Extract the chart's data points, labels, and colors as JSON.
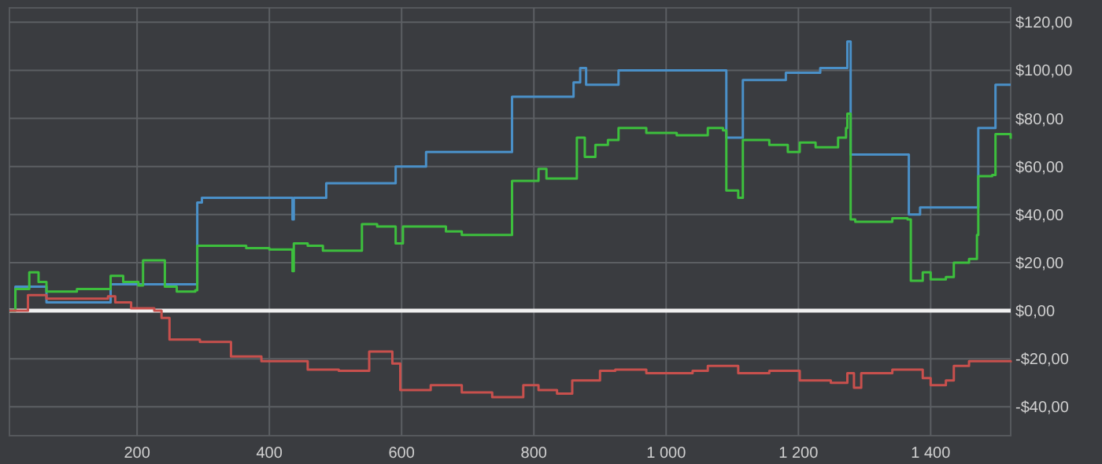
{
  "chart_data": {
    "type": "step",
    "xlim": [
      7,
      1521
    ],
    "ylim": [
      -52,
      126
    ],
    "xticks": [
      200,
      400,
      600,
      800,
      {
        "value": 1000,
        "label": "1 000"
      },
      {
        "value": 1200,
        "label": "1 200"
      },
      {
        "value": 1400,
        "label": "1 400"
      }
    ],
    "yticks": [
      {
        "value": -40,
        "label": "-$40,00"
      },
      {
        "value": -20,
        "label": "-$20,00"
      },
      {
        "value": 0,
        "label": "$0,00"
      },
      {
        "value": 20,
        "label": "$20,00"
      },
      {
        "value": 40,
        "label": "$40,00"
      },
      {
        "value": 60,
        "label": "$60,00"
      },
      {
        "value": 80,
        "label": "$80,00"
      },
      {
        "value": 100,
        "label": "$100,00"
      },
      {
        "value": 120,
        "label": "$120,00"
      }
    ],
    "grid": true,
    "marker": "none",
    "line_style": "solid",
    "ref_lines": [
      {
        "axis": "y",
        "value": 0,
        "color": "#f0f0f0"
      }
    ],
    "series": [
      {
        "color": "#4a90c8",
        "x": [
          7,
          16,
          63,
          160,
          291,
          298,
          435,
          437,
          486,
          591,
          637,
          767,
          860,
          870,
          879,
          928,
          1091,
          1116,
          1181,
          1233,
          1274,
          1279,
          1367,
          1384,
          1472,
          1498,
          1521
        ],
        "values": [
          0,
          10,
          3.5,
          11,
          45,
          47,
          38,
          47,
          53,
          60,
          66,
          89,
          95,
          101,
          94,
          100,
          72,
          96,
          99,
          101,
          112,
          65,
          40,
          43,
          76,
          94,
          94
        ]
      },
      {
        "color": "#3dbf3d",
        "x": [
          7,
          16,
          37,
          51,
          63,
          109,
          160,
          179,
          202,
          209,
          237,
          242,
          260,
          288,
          291,
          342,
          365,
          400,
          435,
          437,
          458,
          481,
          540,
          563,
          591,
          602,
          640,
          667,
          691,
          721,
          767,
          807,
          819,
          853,
          865,
          877,
          893,
          912,
          928,
          970,
          1016,
          1063,
          1086,
          1091,
          1109,
          1116,
          1156,
          1184,
          1202,
          1226,
          1260,
          1272,
          1274,
          1279,
          1286,
          1342,
          1365,
          1370,
          1388,
          1400,
          1423,
          1435,
          1458,
          1470,
          1472,
          1493,
          1498,
          1521
        ],
        "values": [
          0,
          9,
          16,
          12,
          8,
          9,
          14.5,
          12,
          10.5,
          21,
          21,
          10,
          8,
          8.5,
          27,
          27,
          26,
          25.5,
          16.5,
          28,
          27,
          25,
          36,
          35,
          28,
          35,
          35,
          33,
          31.5,
          31.5,
          54,
          59,
          55,
          55,
          72,
          64,
          69,
          71,
          76,
          74,
          73,
          76,
          75,
          50,
          47,
          71,
          69,
          66,
          70,
          68,
          72,
          76,
          82,
          38,
          37,
          38.5,
          38,
          12.5,
          16,
          13,
          14,
          20,
          21.5,
          31.5,
          56,
          56.5,
          73.5,
          71.5
        ]
      },
      {
        "color": "#c8504d",
        "x": [
          7,
          16,
          35,
          63,
          109,
          156,
          167,
          191,
          226,
          237,
          249,
          295,
          342,
          388,
          458,
          505,
          551,
          586,
          598,
          644,
          691,
          737,
          784,
          807,
          835,
          858,
          900,
          923,
          970,
          1040,
          1063,
          1109,
          1156,
          1202,
          1249,
          1274,
          1284,
          1295,
          1342,
          1388,
          1400,
          1423,
          1435,
          1458,
          1481,
          1521
        ],
        "values": [
          0,
          0,
          6.5,
          5,
          5,
          6,
          3.5,
          1,
          0,
          -3,
          -12,
          -13,
          -19,
          -21,
          -24.5,
          -25,
          -17,
          -22,
          -33,
          -31,
          -34,
          -36,
          -31,
          -33,
          -34.5,
          -29,
          -25,
          -24.5,
          -26,
          -25,
          -23,
          -26,
          -25,
          -29,
          -30,
          -26,
          -32,
          -26,
          -24.5,
          -28,
          -31,
          -29,
          -23,
          -21,
          -21,
          -21.5
        ]
      }
    ]
  }
}
